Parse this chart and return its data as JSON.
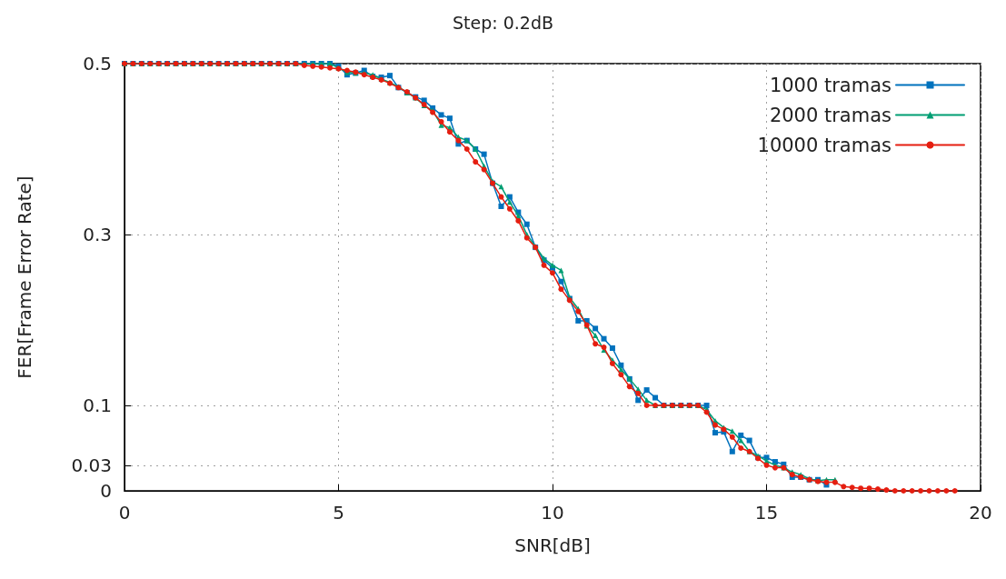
{
  "chart_data": {
    "type": "line",
    "title": "Step: 0.2dB",
    "xlabel": "SNR[dB]",
    "ylabel": "FER[Frame Error Rate]",
    "x": [
      0,
      0.2,
      0.4,
      0.6,
      0.8,
      1,
      1.2,
      1.4,
      1.6,
      1.8,
      2,
      2.2,
      2.4,
      2.6,
      2.8,
      3,
      3.2,
      3.4,
      3.6,
      3.8,
      4,
      4.2,
      4.4,
      4.6,
      4.8,
      5,
      5.2,
      5.4,
      5.6,
      5.8,
      6,
      6.2,
      6.4,
      6.6,
      6.8,
      7,
      7.2,
      7.4,
      7.6,
      7.8,
      8,
      8.2,
      8.4,
      8.6,
      8.8,
      9,
      9.2,
      9.4,
      9.6,
      9.8,
      10,
      10.2,
      10.4,
      10.6,
      10.8,
      11,
      11.2,
      11.4,
      11.6,
      11.8,
      12,
      12.2,
      12.4,
      12.6,
      12.8,
      13,
      13.2,
      13.4,
      13.6,
      13.8,
      14,
      14.2,
      14.4,
      14.6,
      14.8,
      15,
      15.2,
      15.4,
      15.6,
      15.8,
      16,
      16.2,
      16.4,
      16.6,
      16.8,
      17,
      17.2,
      17.4,
      17.6,
      17.8,
      18,
      18.2,
      18.4,
      18.6,
      18.8,
      19,
      19.2,
      19.4
    ],
    "series": [
      {
        "name": "1000 tramas",
        "color": "#0072bd",
        "marker": "square",
        "values": [
          0.5,
          0.5,
          0.5,
          0.5,
          0.5,
          0.5,
          0.5,
          0.5,
          0.5,
          0.5,
          0.5,
          0.5,
          0.5,
          0.5,
          0.5,
          0.5,
          0.5,
          0.5,
          0.5,
          0.5,
          0.5,
          0.5,
          0.5,
          0.5,
          0.5,
          0.497,
          0.487,
          0.489,
          0.492,
          0.485,
          0.484,
          0.486,
          0.472,
          0.466,
          0.461,
          0.457,
          0.448,
          0.44,
          0.436,
          0.406,
          0.41,
          0.4,
          0.394,
          0.36,
          0.333,
          0.344,
          0.326,
          0.312,
          0.285,
          0.27,
          0.261,
          0.245,
          0.225,
          0.199,
          0.199,
          0.19,
          0.178,
          0.167,
          0.147,
          0.131,
          0.106,
          0.118,
          0.109,
          0.1,
          0.1,
          0.1,
          0.1,
          0.1,
          0.1,
          0.068,
          0.069,
          0.046,
          0.065,
          0.059,
          0.039,
          0.039,
          0.034,
          0.031,
          0.016,
          0.016,
          0.013,
          0.013,
          0.007,
          null,
          null,
          null,
          null,
          null,
          null,
          null,
          null,
          null,
          null,
          null,
          null,
          null,
          null,
          null
        ]
      },
      {
        "name": "2000 tramas",
        "color": "#009e73",
        "marker": "triangle",
        "values": [
          0.5,
          0.5,
          0.5,
          0.5,
          0.5,
          0.5,
          0.5,
          0.5,
          0.5,
          0.5,
          0.5,
          0.5,
          0.5,
          0.5,
          0.5,
          0.5,
          0.5,
          0.5,
          0.5,
          0.5,
          0.5,
          0.5,
          0.5,
          0.5,
          0.5,
          0.495,
          0.49,
          0.489,
          0.489,
          0.487,
          0.482,
          0.478,
          0.473,
          0.466,
          0.46,
          0.451,
          0.445,
          0.428,
          0.425,
          0.414,
          0.41,
          0.4,
          0.38,
          0.362,
          0.356,
          0.338,
          0.322,
          0.3,
          0.286,
          0.272,
          0.264,
          0.258,
          0.226,
          0.213,
          0.193,
          0.182,
          0.165,
          0.153,
          0.142,
          0.131,
          0.119,
          0.106,
          0.1,
          0.1,
          0.1,
          0.1,
          0.1,
          0.1,
          0.095,
          0.082,
          0.074,
          0.07,
          0.059,
          0.046,
          0.041,
          0.035,
          0.03,
          0.027,
          0.022,
          0.019,
          0.014,
          0.012,
          0.013,
          0.013,
          null,
          null,
          null,
          null,
          null,
          null,
          null,
          null,
          null,
          null,
          null,
          null,
          null,
          null
        ]
      },
      {
        "name": "10000 tramas",
        "color": "#e51e10",
        "marker": "circle",
        "values": [
          0.5,
          0.5,
          0.5,
          0.5,
          0.5,
          0.5,
          0.5,
          0.5,
          0.5,
          0.5,
          0.5,
          0.5,
          0.5,
          0.5,
          0.5,
          0.5,
          0.5,
          0.5,
          0.5,
          0.5,
          0.5,
          0.498,
          0.497,
          0.496,
          0.495,
          0.494,
          0.492,
          0.49,
          0.487,
          0.484,
          0.481,
          0.477,
          0.472,
          0.467,
          0.46,
          0.452,
          0.443,
          0.432,
          0.42,
          0.41,
          0.4,
          0.385,
          0.376,
          0.36,
          0.344,
          0.33,
          0.316,
          0.296,
          0.285,
          0.264,
          0.255,
          0.236,
          0.223,
          0.21,
          0.194,
          0.172,
          0.168,
          0.149,
          0.136,
          0.122,
          0.114,
          0.1,
          0.1,
          0.1,
          0.1,
          0.1,
          0.1,
          0.1,
          0.092,
          0.077,
          0.072,
          0.063,
          0.05,
          0.046,
          0.038,
          0.03,
          0.027,
          0.027,
          0.019,
          0.016,
          0.013,
          0.011,
          0.01,
          0.01,
          0.005,
          0.004,
          0.003,
          0.003,
          0.002,
          0.001,
          0,
          0,
          0,
          0,
          0,
          0,
          0,
          0
        ]
      }
    ],
    "xlim": [
      0,
      20
    ],
    "xticks": [
      0,
      5,
      10,
      15,
      20
    ],
    "ylim": [
      0,
      0.5
    ],
    "yticks": [
      0,
      0.03,
      0.1,
      0.3,
      0.5
    ],
    "grid": true,
    "legend": "top right",
    "line_style": "solid"
  }
}
